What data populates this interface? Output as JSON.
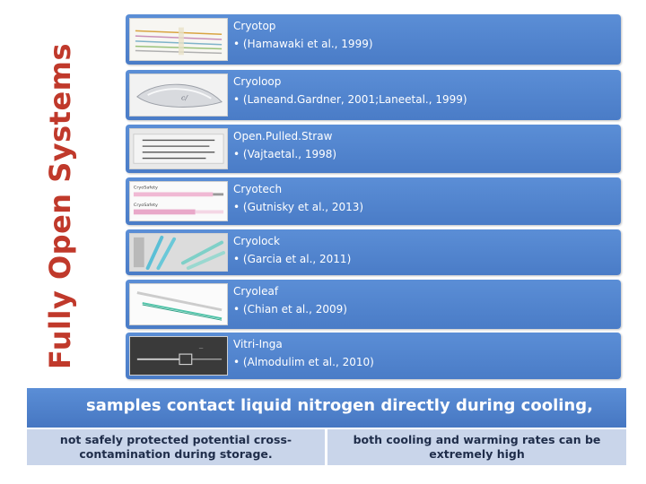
{
  "side_title": "Fully Open Systems",
  "systems": [
    {
      "name": "Cryotop",
      "citation": "• (Hamawaki et al., 1999)",
      "icon": "cryotop-device-image"
    },
    {
      "name": "Cryoloop",
      "citation": "• (Laneand.Gardner, 2001;Laneetal., 1999)",
      "icon": "cryoloop-device-image"
    },
    {
      "name": "Open.Pulled.Straw",
      "citation": "• (Vajtaetal., 1998)",
      "icon": "open-pulled-straw-image"
    },
    {
      "name": "Cryotech",
      "citation": "• (Gutnisky et al., 2013)",
      "icon": "cryotech-device-image"
    },
    {
      "name": "Cryolock",
      "citation": "• (Garcia et al., 2011)",
      "icon": "cryolock-device-image"
    },
    {
      "name": "Cryoleaf",
      "citation": "• (Chian et al., 2009)",
      "icon": "cryoleaf-device-image"
    },
    {
      "name": "Vitri-Inga",
      "citation": "• (Almodulim et al., 2010)",
      "icon": "vitri-inga-device-image"
    }
  ],
  "banner": "samples contact liquid nitrogen directly during cooling,",
  "bottom_left": {
    "line1": "not safely protected potential cross-",
    "line2": "contamination during storage."
  },
  "bottom_right": {
    "line1": "both cooling and warming rates can be",
    "line2": "extremely high"
  },
  "thumb_labels": {
    "cryotech_top": "CryoSafety",
    "cryotech_bottom": "CryoSafety"
  },
  "colors": {
    "title": "#c0392b",
    "row": "#4f82cc",
    "banner": "#4f82cc",
    "cell": "#c9d5ea"
  }
}
